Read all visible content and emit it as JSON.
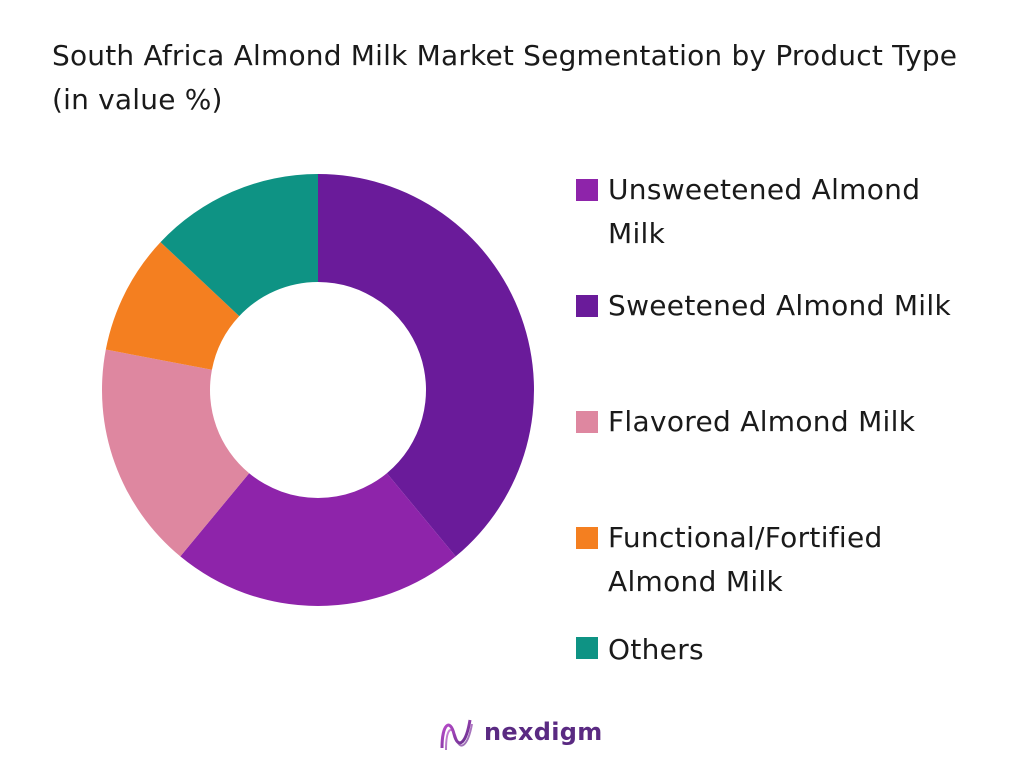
{
  "chart_data": {
    "type": "donut",
    "title": "South Africa Almond Milk Market Segmentation by Product Type (in value %)",
    "series": [
      {
        "name": "Unsweetened Almond Milk",
        "value": 22,
        "color": "#8e24aa"
      },
      {
        "name": "Sweetened Almond Milk",
        "value": 39,
        "color": "#6a1b9a"
      },
      {
        "name": "Flavored Almond Milk",
        "value": 17,
        "color": "#de87a0"
      },
      {
        "name": "Functional/Fortified Almond Milk",
        "value": 9,
        "color": "#f47f20"
      },
      {
        "name": "Others",
        "value": 13,
        "color": "#0e9384"
      }
    ],
    "slice_order_clockwise_from_top": [
      "Sweetened Almond Milk",
      "Unsweetened Almond Milk",
      "Flavored Almond Milk",
      "Functional/Fortified Almond Milk",
      "Others"
    ],
    "legend_position": "right"
  },
  "legend": {
    "items": [
      {
        "label": "Unsweetened Almond Milk",
        "color": "#8e24aa"
      },
      {
        "label": "Sweetened Almond Milk",
        "color": "#6a1b9a"
      },
      {
        "label": "Flavored Almond Milk",
        "color": "#de87a0"
      },
      {
        "label": "Functional/Fortified Almond Milk",
        "color": "#f47f20"
      },
      {
        "label": "Others",
        "color": "#0e9384"
      }
    ]
  },
  "footer": {
    "brand": "nexdigm",
    "brand_color": "#5a2a82",
    "icon": "nexdigm-logo-icon"
  }
}
